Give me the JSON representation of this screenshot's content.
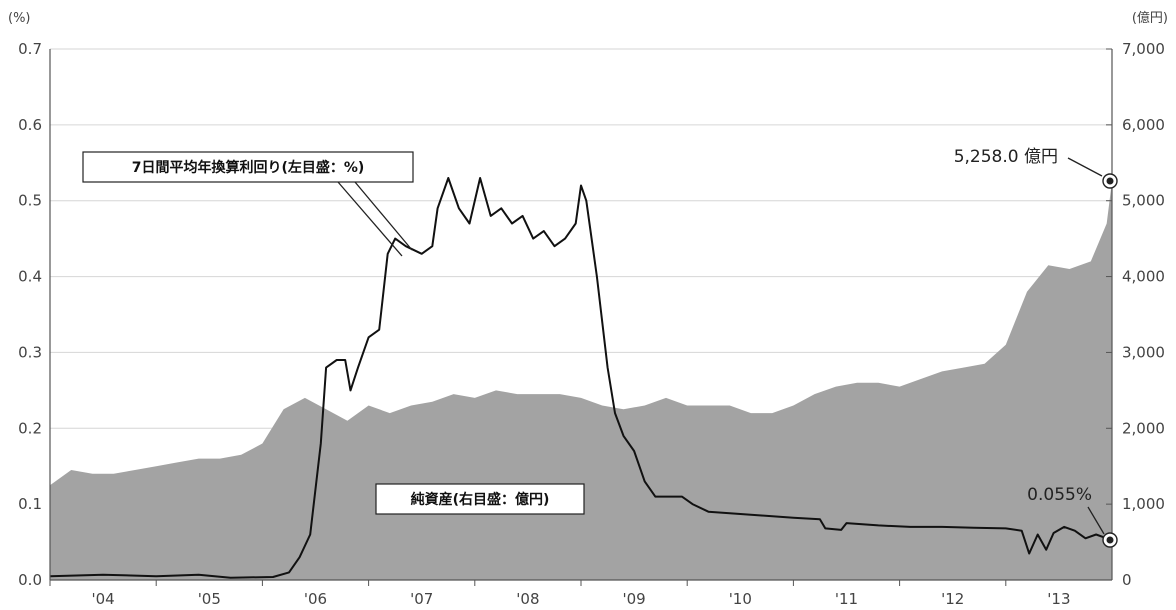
{
  "chart_data": {
    "type": "area",
    "left_axis": {
      "unit": "(%)",
      "range": [
        0,
        0.7
      ],
      "ticks": [
        "0.0",
        "0.1",
        "0.2",
        "0.3",
        "0.4",
        "0.5",
        "0.6",
        "0.7"
      ]
    },
    "right_axis": {
      "unit": "(億円)",
      "range": [
        0,
        7000
      ],
      "ticks": [
        "0",
        "1,000",
        "2,000",
        "3,000",
        "4,000",
        "5,000",
        "6,000",
        "7,000"
      ]
    },
    "x_ticks": [
      "'04",
      "'05",
      "'06",
      "'07",
      "'08",
      "'09",
      "'10",
      "'11",
      "'12",
      "'13"
    ],
    "grid": true,
    "series": [
      {
        "name": "純資産",
        "axis": "right",
        "style": "area",
        "color": "#a3a3a3",
        "points": [
          [
            2003.5,
            1250
          ],
          [
            2003.7,
            1450
          ],
          [
            2003.9,
            1400
          ],
          [
            2004.1,
            1400
          ],
          [
            2004.3,
            1450
          ],
          [
            2004.5,
            1500
          ],
          [
            2004.7,
            1550
          ],
          [
            2004.9,
            1600
          ],
          [
            2005.1,
            1600
          ],
          [
            2005.3,
            1650
          ],
          [
            2005.5,
            1800
          ],
          [
            2005.7,
            2250
          ],
          [
            2005.9,
            2400
          ],
          [
            2006.1,
            2250
          ],
          [
            2006.3,
            2100
          ],
          [
            2006.5,
            2300
          ],
          [
            2006.7,
            2200
          ],
          [
            2006.9,
            2300
          ],
          [
            2007.1,
            2350
          ],
          [
            2007.3,
            2450
          ],
          [
            2007.5,
            2400
          ],
          [
            2007.7,
            2500
          ],
          [
            2007.9,
            2450
          ],
          [
            2008.1,
            2450
          ],
          [
            2008.3,
            2450
          ],
          [
            2008.5,
            2400
          ],
          [
            2008.7,
            2300
          ],
          [
            2008.9,
            2250
          ],
          [
            2009.1,
            2300
          ],
          [
            2009.3,
            2400
          ],
          [
            2009.5,
            2300
          ],
          [
            2009.7,
            2300
          ],
          [
            2009.9,
            2300
          ],
          [
            2010.1,
            2200
          ],
          [
            2010.3,
            2200
          ],
          [
            2010.5,
            2300
          ],
          [
            2010.7,
            2450
          ],
          [
            2010.9,
            2550
          ],
          [
            2011.1,
            2600
          ],
          [
            2011.3,
            2600
          ],
          [
            2011.5,
            2550
          ],
          [
            2011.7,
            2650
          ],
          [
            2011.9,
            2750
          ],
          [
            2012.1,
            2800
          ],
          [
            2012.3,
            2850
          ],
          [
            2012.5,
            3100
          ],
          [
            2012.7,
            3800
          ],
          [
            2012.9,
            4150
          ],
          [
            2013.1,
            4100
          ],
          [
            2013.3,
            4200
          ],
          [
            2013.45,
            4700
          ],
          [
            2013.5,
            5258
          ]
        ]
      },
      {
        "name": "7日間平均年換算利回り",
        "axis": "left",
        "style": "line",
        "color": "#111111",
        "points": [
          [
            2003.5,
            0.005
          ],
          [
            2004.0,
            0.007
          ],
          [
            2004.5,
            0.005
          ],
          [
            2004.9,
            0.007
          ],
          [
            2005.2,
            0.003
          ],
          [
            2005.6,
            0.004
          ],
          [
            2005.75,
            0.01
          ],
          [
            2005.85,
            0.03
          ],
          [
            2005.95,
            0.06
          ],
          [
            2006.05,
            0.18
          ],
          [
            2006.1,
            0.28
          ],
          [
            2006.2,
            0.29
          ],
          [
            2006.28,
            0.29
          ],
          [
            2006.33,
            0.25
          ],
          [
            2006.4,
            0.28
          ],
          [
            2006.5,
            0.32
          ],
          [
            2006.6,
            0.33
          ],
          [
            2006.68,
            0.43
          ],
          [
            2006.75,
            0.45
          ],
          [
            2006.85,
            0.44
          ],
          [
            2007.0,
            0.43
          ],
          [
            2007.1,
            0.44
          ],
          [
            2007.15,
            0.49
          ],
          [
            2007.25,
            0.53
          ],
          [
            2007.35,
            0.49
          ],
          [
            2007.45,
            0.47
          ],
          [
            2007.55,
            0.53
          ],
          [
            2007.65,
            0.48
          ],
          [
            2007.75,
            0.49
          ],
          [
            2007.85,
            0.47
          ],
          [
            2007.95,
            0.48
          ],
          [
            2008.05,
            0.45
          ],
          [
            2008.15,
            0.46
          ],
          [
            2008.25,
            0.44
          ],
          [
            2008.35,
            0.45
          ],
          [
            2008.45,
            0.47
          ],
          [
            2008.5,
            0.52
          ],
          [
            2008.55,
            0.5
          ],
          [
            2008.65,
            0.4
          ],
          [
            2008.75,
            0.28
          ],
          [
            2008.82,
            0.22
          ],
          [
            2008.9,
            0.19
          ],
          [
            2009.0,
            0.17
          ],
          [
            2009.1,
            0.13
          ],
          [
            2009.2,
            0.11
          ],
          [
            2009.35,
            0.11
          ],
          [
            2009.45,
            0.11
          ],
          [
            2009.55,
            0.1
          ],
          [
            2009.7,
            0.09
          ],
          [
            2009.9,
            0.088
          ],
          [
            2010.2,
            0.085
          ],
          [
            2010.5,
            0.082
          ],
          [
            2010.75,
            0.08
          ],
          [
            2010.8,
            0.068
          ],
          [
            2010.95,
            0.066
          ],
          [
            2011.0,
            0.075
          ],
          [
            2011.3,
            0.072
          ],
          [
            2011.6,
            0.07
          ],
          [
            2011.9,
            0.07
          ],
          [
            2012.2,
            0.069
          ],
          [
            2012.5,
            0.068
          ],
          [
            2012.65,
            0.065
          ],
          [
            2012.72,
            0.035
          ],
          [
            2012.8,
            0.06
          ],
          [
            2012.88,
            0.04
          ],
          [
            2012.95,
            0.062
          ],
          [
            2013.05,
            0.07
          ],
          [
            2013.15,
            0.065
          ],
          [
            2013.25,
            0.055
          ],
          [
            2013.35,
            0.06
          ],
          [
            2013.45,
            0.055
          ],
          [
            2013.5,
            0.055
          ]
        ]
      }
    ],
    "annotations": {
      "yield_label": "7日間平均年換算利回り(左目盛：%)",
      "assets_label": "純資産(右目盛：億円)",
      "assets_end_value": "5,258.0 億円",
      "yield_end_value": "0.055%"
    }
  }
}
